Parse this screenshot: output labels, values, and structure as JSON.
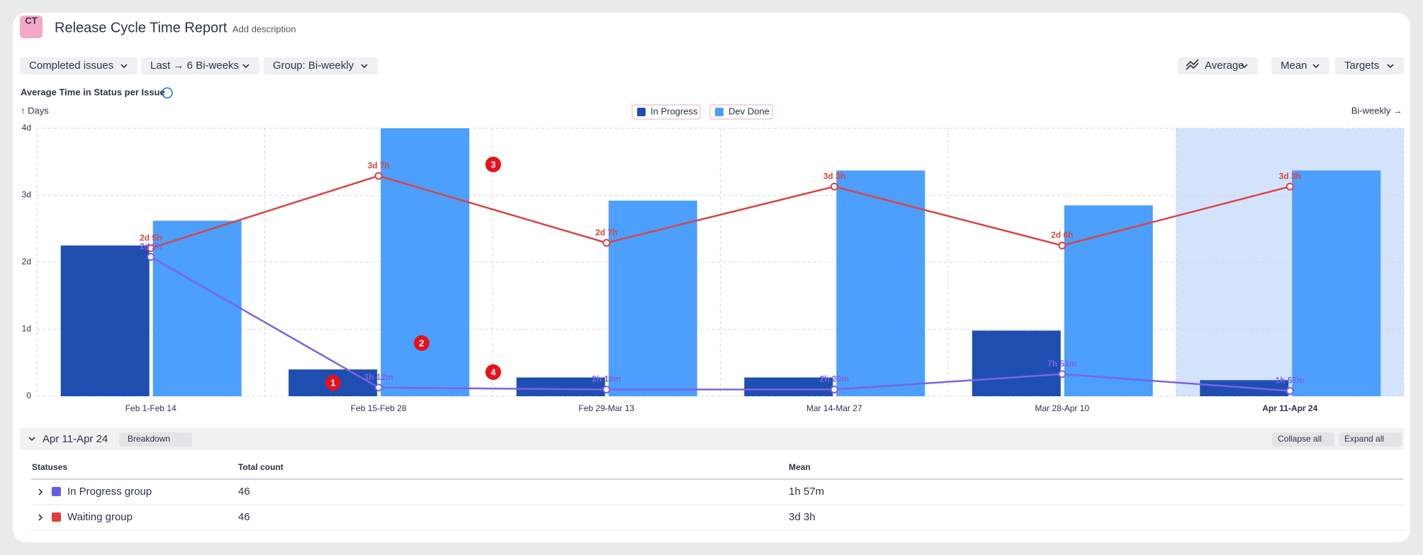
{
  "header": {
    "logo": "CT",
    "title": "Release Cycle Time Report",
    "description": "Add description"
  },
  "toolbar": {
    "left": [
      "Completed issues",
      "Last → 6 Bi-weeks",
      "Group: Bi-weekly"
    ],
    "right": [
      "Average",
      "Mean",
      "Targets"
    ]
  },
  "chart_data": {
    "type": "bar",
    "title": "Average Time in Status per Issue",
    "y_label": "↑ Days",
    "x_label": "Bi-weekly →",
    "categories": [
      "Feb 1-Feb 14",
      "Feb 15-Feb 28",
      "Feb 29-Mar 13",
      "Mar 14-Mar 27",
      "Mar 28-Apr 10",
      "Apr 11-Apr 24"
    ],
    "highlight_index": 5,
    "series": [
      {
        "name": "In Progress",
        "color": "#1e4fb0",
        "values": [
          2.25,
          0.4,
          0.28,
          0.28,
          0.98,
          0.24
        ]
      },
      {
        "name": "Dev Done",
        "color": "#4c9ffa",
        "values": [
          2.62,
          4.0,
          2.92,
          3.37,
          2.85,
          3.37
        ]
      }
    ],
    "lines": [
      {
        "color": "#d94444",
        "values": [
          2.21,
          3.29,
          2.29,
          3.13,
          2.25,
          3.13
        ],
        "value_labels": [
          "2d 5h",
          "3d 7h",
          "2d 7h",
          "3d 3h",
          "2d 6h",
          "3d 3h"
        ]
      },
      {
        "color": "#7b63e6",
        "values": [
          2.08,
          0.13,
          0.1,
          0.1,
          0.33,
          0.08
        ],
        "value_labels": [
          "2d 2h",
          "3h 12m",
          "2h 18m",
          "2h 20m",
          "7h 51m",
          "1h 57m"
        ]
      }
    ],
    "ylim": [
      0,
      4
    ],
    "yticks": [
      0,
      {
        "value": 1,
        "label": "1d"
      },
      {
        "value": 2,
        "label": "2d"
      },
      {
        "value": 3,
        "label": "3d"
      },
      {
        "value": 4,
        "label": "4d"
      }
    ],
    "grid": true,
    "annotations": [
      "1",
      "2",
      "3",
      "4"
    ]
  },
  "detail": {
    "period": "Apr 11-Apr 24",
    "breakdown": "Breakdown",
    "collapse": "Collapse all",
    "expand": "Expand all"
  },
  "table": {
    "columns": [
      "Statuses",
      "Total count",
      "Mean"
    ],
    "rows": [
      {
        "color": "#6b5ce7",
        "cells": [
          "In Progress group",
          "46",
          "1h 57m"
        ]
      },
      {
        "color": "#e03c3c",
        "cells": [
          "Waiting group",
          "46",
          "3d 3h"
        ]
      }
    ]
  }
}
